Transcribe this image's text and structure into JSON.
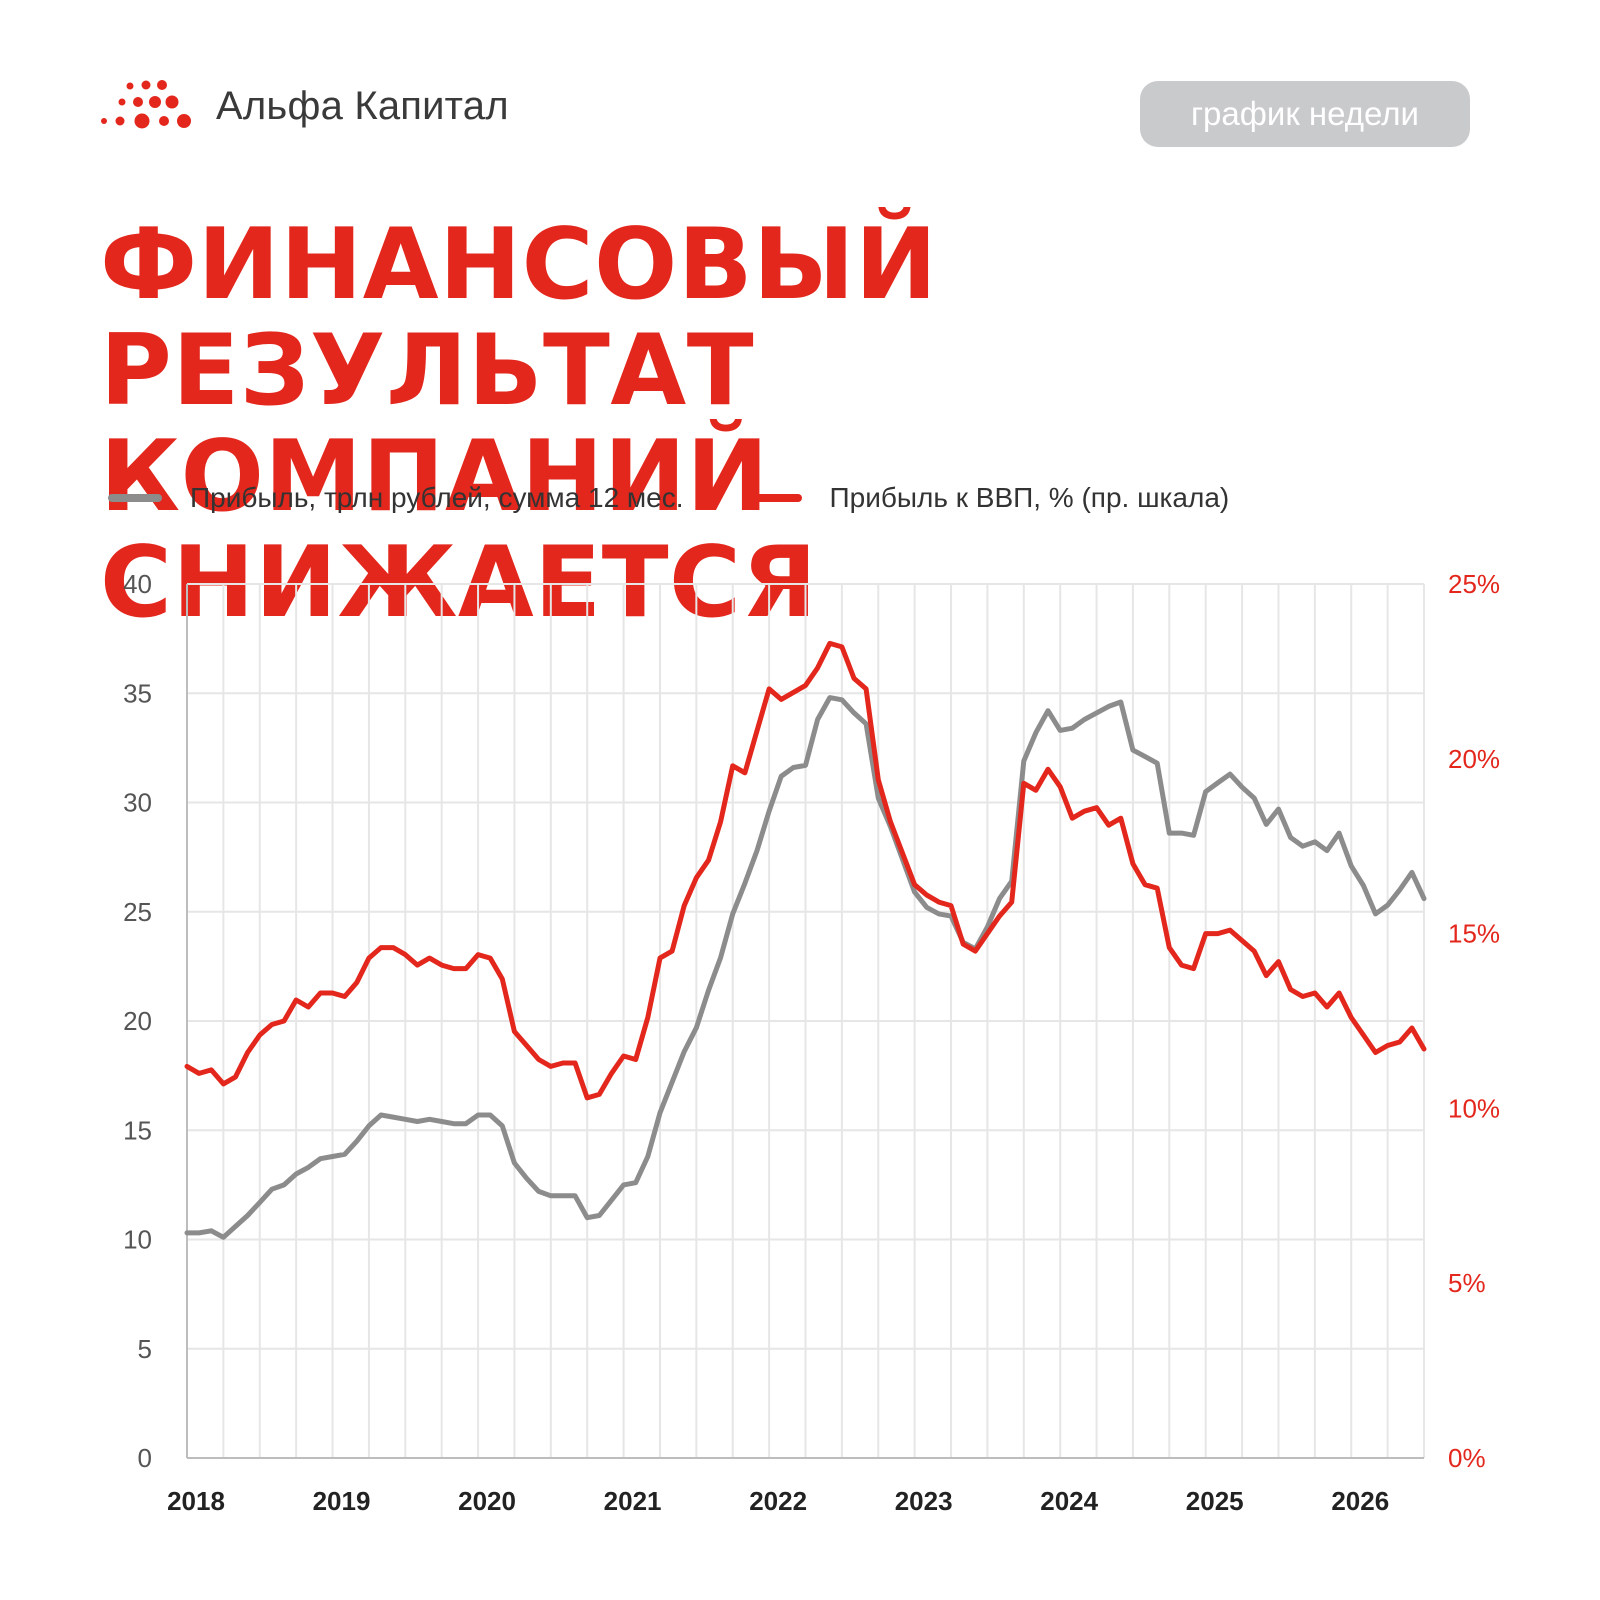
{
  "brand": {
    "name": "Альфа Капитал",
    "logo_icon": "dots-logo-icon",
    "accent": "#e3271c"
  },
  "badge": {
    "label": "график недели"
  },
  "title": {
    "line1": "ФИНАНСОВЫЙ РЕЗУЛЬТАТ",
    "line2": "КОМПАНИЙ СНИЖАЕТСЯ"
  },
  "legend": [
    {
      "label": "Прибыль, трлн рублей, сумма 12 мес.",
      "color": "#8c8c8c"
    },
    {
      "label": "Прибыль к ВВП, % (пр. шкала)",
      "color": "#e3271c"
    }
  ],
  "chart_data": {
    "type": "line",
    "x_start": "2018-01",
    "x_step": "month",
    "xlim": [
      2018.0,
      2026.5
    ],
    "x_ticks": [
      "2018",
      "2019",
      "2020",
      "2021",
      "2022",
      "2023",
      "2024",
      "2025",
      "2026"
    ],
    "y_left": {
      "ticks": [
        "0",
        "5",
        "10",
        "15",
        "20",
        "25",
        "30",
        "35",
        "40"
      ],
      "ylim": [
        0,
        40
      ]
    },
    "y_right": {
      "ticks": [
        "0%",
        "5%",
        "10%",
        "15%",
        "20%",
        "25%"
      ],
      "ylim": [
        0,
        25
      ]
    },
    "grid": true,
    "legend_position": "top",
    "series": [
      {
        "name": "Прибыль, трлн рублей, сумма 12 мес.",
        "axis": "left",
        "color": "#8c8c8c",
        "values": [
          10.3,
          10.3,
          10.4,
          10.1,
          10.6,
          11.1,
          11.7,
          12.3,
          12.5,
          13.0,
          13.3,
          13.7,
          13.8,
          13.9,
          14.5,
          15.2,
          15.7,
          15.6,
          15.5,
          15.4,
          15.5,
          15.4,
          15.3,
          15.3,
          15.7,
          15.7,
          15.2,
          13.5,
          12.8,
          12.2,
          12.0,
          12.0,
          12.0,
          11.0,
          11.1,
          11.8,
          12.5,
          12.6,
          13.8,
          15.8,
          17.2,
          18.6,
          19.7,
          21.4,
          22.9,
          24.9,
          26.3,
          27.8,
          29.6,
          31.2,
          31.6,
          31.7,
          33.8,
          34.8,
          34.7,
          34.1,
          33.6,
          30.2,
          28.9,
          27.4,
          25.9,
          25.2,
          24.9,
          24.8,
          23.6,
          23.3,
          24.3,
          25.6,
          26.4,
          31.9,
          33.2,
          34.2,
          33.3,
          33.4,
          33.8,
          34.1,
          34.4,
          34.6,
          32.4,
          32.1,
          31.8,
          28.6,
          28.6,
          28.5,
          30.5,
          30.9,
          31.3,
          30.7,
          30.2,
          29.0,
          29.7,
          28.4,
          28.0,
          28.2,
          27.8,
          28.6,
          27.1,
          26.2,
          24.9,
          25.3,
          26.0,
          26.8,
          25.6
        ]
      },
      {
        "name": "Прибыль к ВВП, % (пр. шкала)",
        "axis": "right",
        "color": "#e3271c",
        "values": [
          11.2,
          11.0,
          11.1,
          10.7,
          10.9,
          11.6,
          12.1,
          12.4,
          12.5,
          13.1,
          12.9,
          13.3,
          13.3,
          13.2,
          13.6,
          14.3,
          14.6,
          14.6,
          14.4,
          14.1,
          14.3,
          14.1,
          14.0,
          14.0,
          14.4,
          14.3,
          13.7,
          12.2,
          11.8,
          11.4,
          11.2,
          11.3,
          11.3,
          10.3,
          10.4,
          11.0,
          11.5,
          11.4,
          12.6,
          14.3,
          14.5,
          15.8,
          16.6,
          17.1,
          18.2,
          19.8,
          19.6,
          20.8,
          22.0,
          21.7,
          21.9,
          22.1,
          22.6,
          23.3,
          23.2,
          22.3,
          22.0,
          19.4,
          18.2,
          17.3,
          16.4,
          16.1,
          15.9,
          15.8,
          14.7,
          14.5,
          15.0,
          15.5,
          15.9,
          19.3,
          19.1,
          19.7,
          19.2,
          18.3,
          18.5,
          18.6,
          18.1,
          18.3,
          17.0,
          16.4,
          16.3,
          14.6,
          14.1,
          14.0,
          15.0,
          15.0,
          15.1,
          14.8,
          14.5,
          13.8,
          14.2,
          13.4,
          13.2,
          13.3,
          12.9,
          13.3,
          12.6,
          12.1,
          11.6,
          11.8,
          11.9,
          12.3,
          11.7
        ]
      }
    ]
  }
}
